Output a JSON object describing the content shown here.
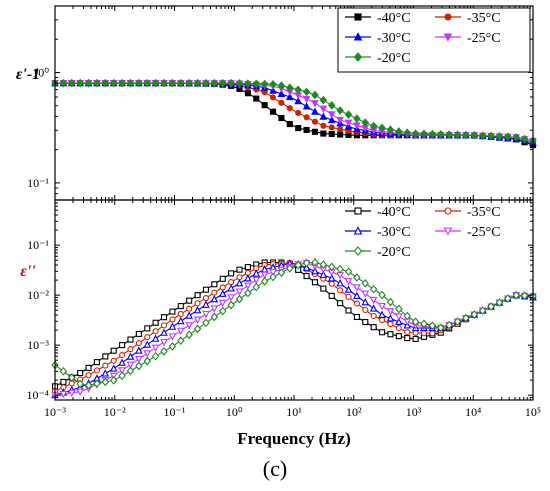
{
  "caption": "(c)",
  "colors": {
    "-40°C": "#000000",
    "-35°C": "#cc2200",
    "-30°C": "#0000ee",
    "-25°C": "#cc33ff",
    "-20°C": "#228822"
  },
  "chart_data": [
    {
      "type": "line",
      "subplot": "top",
      "ylabel": "ε'-1",
      "xlabel": "",
      "xscale": "log",
      "yscale": "log",
      "xlim": [
        0.001,
        100000
      ],
      "ylim": [
        0.07,
        4.0
      ],
      "yticks": [
        {
          "value": 1,
          "label": "10⁰"
        },
        {
          "value": 0.1,
          "label": "10⁻¹"
        }
      ],
      "markers": "filled",
      "legend": {
        "position": "top-right",
        "columns": 2
      },
      "series": [
        {
          "name": "-40°C",
          "marker": "square",
          "points": [
            [
              0.001,
              0.8
            ],
            [
              0.1,
              0.8
            ],
            [
              0.5,
              0.79
            ],
            [
              1,
              0.75
            ],
            [
              2,
              0.62
            ],
            [
              5,
              0.42
            ],
            [
              10,
              0.32
            ],
            [
              30,
              0.28
            ],
            [
              100,
              0.27
            ],
            [
              1000,
              0.27
            ],
            [
              10000,
              0.27
            ],
            [
              50000,
              0.25
            ],
            [
              100000,
              0.22
            ]
          ]
        },
        {
          "name": "-35°C",
          "marker": "circle",
          "points": [
            [
              0.001,
              0.8
            ],
            [
              0.1,
              0.8
            ],
            [
              1,
              0.78
            ],
            [
              3,
              0.68
            ],
            [
              10,
              0.45
            ],
            [
              30,
              0.33
            ],
            [
              100,
              0.29
            ],
            [
              300,
              0.27
            ],
            [
              1000,
              0.27
            ],
            [
              10000,
              0.27
            ],
            [
              50000,
              0.25
            ],
            [
              100000,
              0.23
            ]
          ]
        },
        {
          "name": "-30°C",
          "marker": "triangle-up",
          "points": [
            [
              0.001,
              0.8
            ],
            [
              0.1,
              0.8
            ],
            [
              1,
              0.79
            ],
            [
              3,
              0.74
            ],
            [
              10,
              0.58
            ],
            [
              30,
              0.4
            ],
            [
              100,
              0.31
            ],
            [
              300,
              0.28
            ],
            [
              1000,
              0.27
            ],
            [
              10000,
              0.27
            ],
            [
              50000,
              0.25
            ],
            [
              100000,
              0.23
            ]
          ]
        },
        {
          "name": "-25°C",
          "marker": "triangle-down",
          "points": [
            [
              0.001,
              0.8
            ],
            [
              0.1,
              0.8
            ],
            [
              1,
              0.8
            ],
            [
              5,
              0.75
            ],
            [
              20,
              0.55
            ],
            [
              60,
              0.37
            ],
            [
              200,
              0.3
            ],
            [
              600,
              0.28
            ],
            [
              1000,
              0.27
            ],
            [
              10000,
              0.27
            ],
            [
              50000,
              0.26
            ],
            [
              100000,
              0.24
            ]
          ]
        },
        {
          "name": "-20°C",
          "marker": "diamond",
          "points": [
            [
              0.001,
              0.8
            ],
            [
              0.1,
              0.8
            ],
            [
              1,
              0.8
            ],
            [
              5,
              0.78
            ],
            [
              20,
              0.65
            ],
            [
              60,
              0.45
            ],
            [
              200,
              0.33
            ],
            [
              600,
              0.29
            ],
            [
              1000,
              0.28
            ],
            [
              10000,
              0.27
            ],
            [
              50000,
              0.26
            ],
            [
              100000,
              0.24
            ]
          ]
        }
      ]
    },
    {
      "type": "line",
      "subplot": "bottom",
      "ylabel": "ε''",
      "xlabel": "Frequency (Hz)",
      "xscale": "log",
      "yscale": "log",
      "xlim": [
        0.001,
        100000
      ],
      "ylim": [
        8e-05,
        0.8
      ],
      "yticks": [
        {
          "value": 0.1,
          "label": "10⁻¹"
        },
        {
          "value": 0.01,
          "label": "10⁻²"
        },
        {
          "value": 0.001,
          "label": "10⁻³"
        },
        {
          "value": 0.0001,
          "label": "10⁻⁴"
        }
      ],
      "xticks": [
        {
          "value": 0.001,
          "label": "10⁻³"
        },
        {
          "value": 0.01,
          "label": "10⁻²"
        },
        {
          "value": 0.1,
          "label": "10⁻¹"
        },
        {
          "value": 1,
          "label": "10⁰"
        },
        {
          "value": 10,
          "label": "10¹"
        },
        {
          "value": 100,
          "label": "10²"
        },
        {
          "value": 1000,
          "label": "10³"
        },
        {
          "value": 10000,
          "label": "10⁴"
        },
        {
          "value": 100000,
          "label": "10⁵"
        }
      ],
      "markers": "open",
      "legend": {
        "position": "top-right",
        "columns": 2
      },
      "series": [
        {
          "name": "-40°C",
          "marker": "square",
          "points": [
            [
              0.001,
              0.00015
            ],
            [
              0.003,
              0.0003
            ],
            [
              0.01,
              0.0008
            ],
            [
              0.1,
              0.005
            ],
            [
              1,
              0.03
            ],
            [
              3,
              0.045
            ],
            [
              8,
              0.045
            ],
            [
              30,
              0.014
            ],
            [
              100,
              0.004
            ],
            [
              300,
              0.0018
            ],
            [
              1000,
              0.0013
            ],
            [
              3000,
              0.0018
            ],
            [
              10000,
              0.004
            ],
            [
              50000,
              0.01
            ],
            [
              100000,
              0.009
            ]
          ]
        },
        {
          "name": "-35°C",
          "marker": "circle",
          "points": [
            [
              0.001,
              0.00012
            ],
            [
              0.003,
              0.00022
            ],
            [
              0.01,
              0.0005
            ],
            [
              0.1,
              0.0035
            ],
            [
              1,
              0.02
            ],
            [
              3,
              0.04
            ],
            [
              10,
              0.045
            ],
            [
              40,
              0.018
            ],
            [
              200,
              0.004
            ],
            [
              800,
              0.0018
            ],
            [
              2000,
              0.0017
            ],
            [
              5000,
              0.0025
            ],
            [
              20000,
              0.006
            ],
            [
              50000,
              0.01
            ],
            [
              100000,
              0.009
            ]
          ]
        },
        {
          "name": "-30°C",
          "marker": "triangle-up",
          "points": [
            [
              0.001,
              0.0001
            ],
            [
              0.003,
              0.00015
            ],
            [
              0.01,
              0.00035
            ],
            [
              0.1,
              0.0025
            ],
            [
              1,
              0.015
            ],
            [
              3,
              0.032
            ],
            [
              10,
              0.045
            ],
            [
              50,
              0.02
            ],
            [
              300,
              0.004
            ],
            [
              1000,
              0.0022
            ],
            [
              3000,
              0.0022
            ],
            [
              10000,
              0.004
            ],
            [
              50000,
              0.01
            ],
            [
              100000,
              0.009
            ]
          ]
        },
        {
          "name": "-25°C",
          "marker": "triangle-down",
          "points": [
            [
              0.001,
              0.0001
            ],
            [
              0.003,
              0.00012
            ],
            [
              0.01,
              0.00025
            ],
            [
              0.1,
              0.0016
            ],
            [
              1,
              0.01
            ],
            [
              3,
              0.025
            ],
            [
              15,
              0.045
            ],
            [
              60,
              0.025
            ],
            [
              300,
              0.006
            ],
            [
              1000,
              0.0025
            ],
            [
              3000,
              0.0022
            ],
            [
              10000,
              0.004
            ],
            [
              50000,
              0.01
            ],
            [
              100000,
              0.0095
            ]
          ]
        },
        {
          "name": "-20°C",
          "marker": "diamond",
          "points": [
            [
              0.001,
              0.0004
            ],
            [
              0.003,
              0.00015
            ],
            [
              0.01,
              0.0002
            ],
            [
              0.1,
              0.001
            ],
            [
              1,
              0.007
            ],
            [
              3,
              0.018
            ],
            [
              10,
              0.038
            ],
            [
              20,
              0.047
            ],
            [
              80,
              0.03
            ],
            [
              300,
              0.01
            ],
            [
              1000,
              0.003
            ],
            [
              3000,
              0.0022
            ],
            [
              10000,
              0.004
            ],
            [
              50000,
              0.01
            ],
            [
              100000,
              0.0095
            ]
          ]
        }
      ]
    }
  ]
}
